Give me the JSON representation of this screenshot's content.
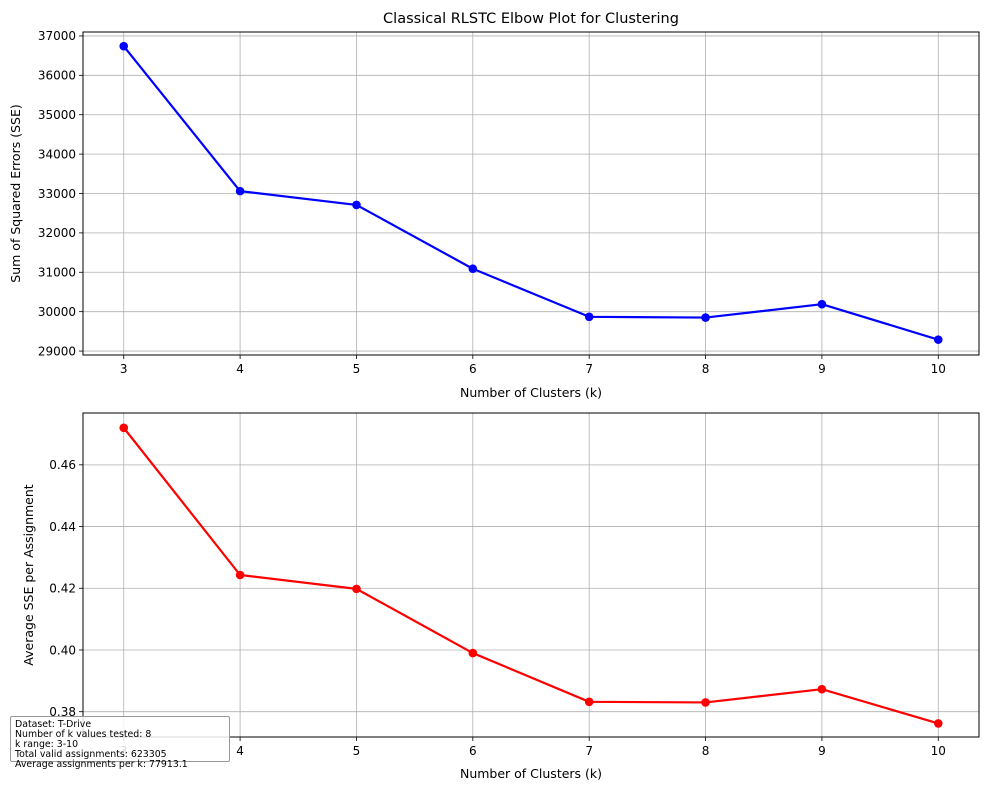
{
  "chart_data": [
    {
      "type": "line",
      "title": "Classical RLSTC Elbow Plot for Clustering",
      "xlabel": "Number of Clusters (k)",
      "ylabel": "Sum of Squared Errors (SSE)",
      "x": [
        3,
        4,
        5,
        6,
        7,
        8,
        9,
        10
      ],
      "xticks": [
        "3",
        "4",
        "5",
        "6",
        "7",
        "8",
        "9",
        "10"
      ],
      "yticks": [
        29000,
        30000,
        31000,
        32000,
        33000,
        34000,
        35000,
        36000,
        37000
      ],
      "ylim": [
        28900,
        37100
      ],
      "xlim": [
        2.65,
        10.35
      ],
      "grid": true,
      "color": "#0000ff",
      "series": [
        {
          "values": [
            36740,
            33060,
            32710,
            31090,
            29870,
            29850,
            30190,
            29290
          ]
        }
      ]
    },
    {
      "type": "line",
      "title": "",
      "xlabel": "Number of Clusters (k)",
      "ylabel": "Average SSE per Assignment",
      "x": [
        3,
        4,
        5,
        6,
        7,
        8,
        9,
        10
      ],
      "xticks": [
        "3",
        "4",
        "5",
        "6",
        "7",
        "8",
        "9",
        "10"
      ],
      "yticks": [
        0.38,
        0.4,
        0.42,
        0.44,
        0.46
      ],
      "ytick_labels": [
        "0.38",
        "0.40",
        "0.42",
        "0.44",
        "0.46"
      ],
      "ylim": [
        0.3718,
        0.4768
      ],
      "xlim": [
        2.65,
        10.35
      ],
      "grid": true,
      "color": "#ff0000",
      "series": [
        {
          "values": [
            0.472,
            0.4243,
            0.4198,
            0.399,
            0.3832,
            0.383,
            0.3873,
            0.3762
          ]
        }
      ]
    }
  ],
  "info_box": {
    "lines": [
      "Dataset: T-Drive",
      "Number of k values tested: 8",
      "k range: 3-10",
      "Total valid assignments: 623305",
      "Average assignments per k: 77913.1"
    ]
  }
}
